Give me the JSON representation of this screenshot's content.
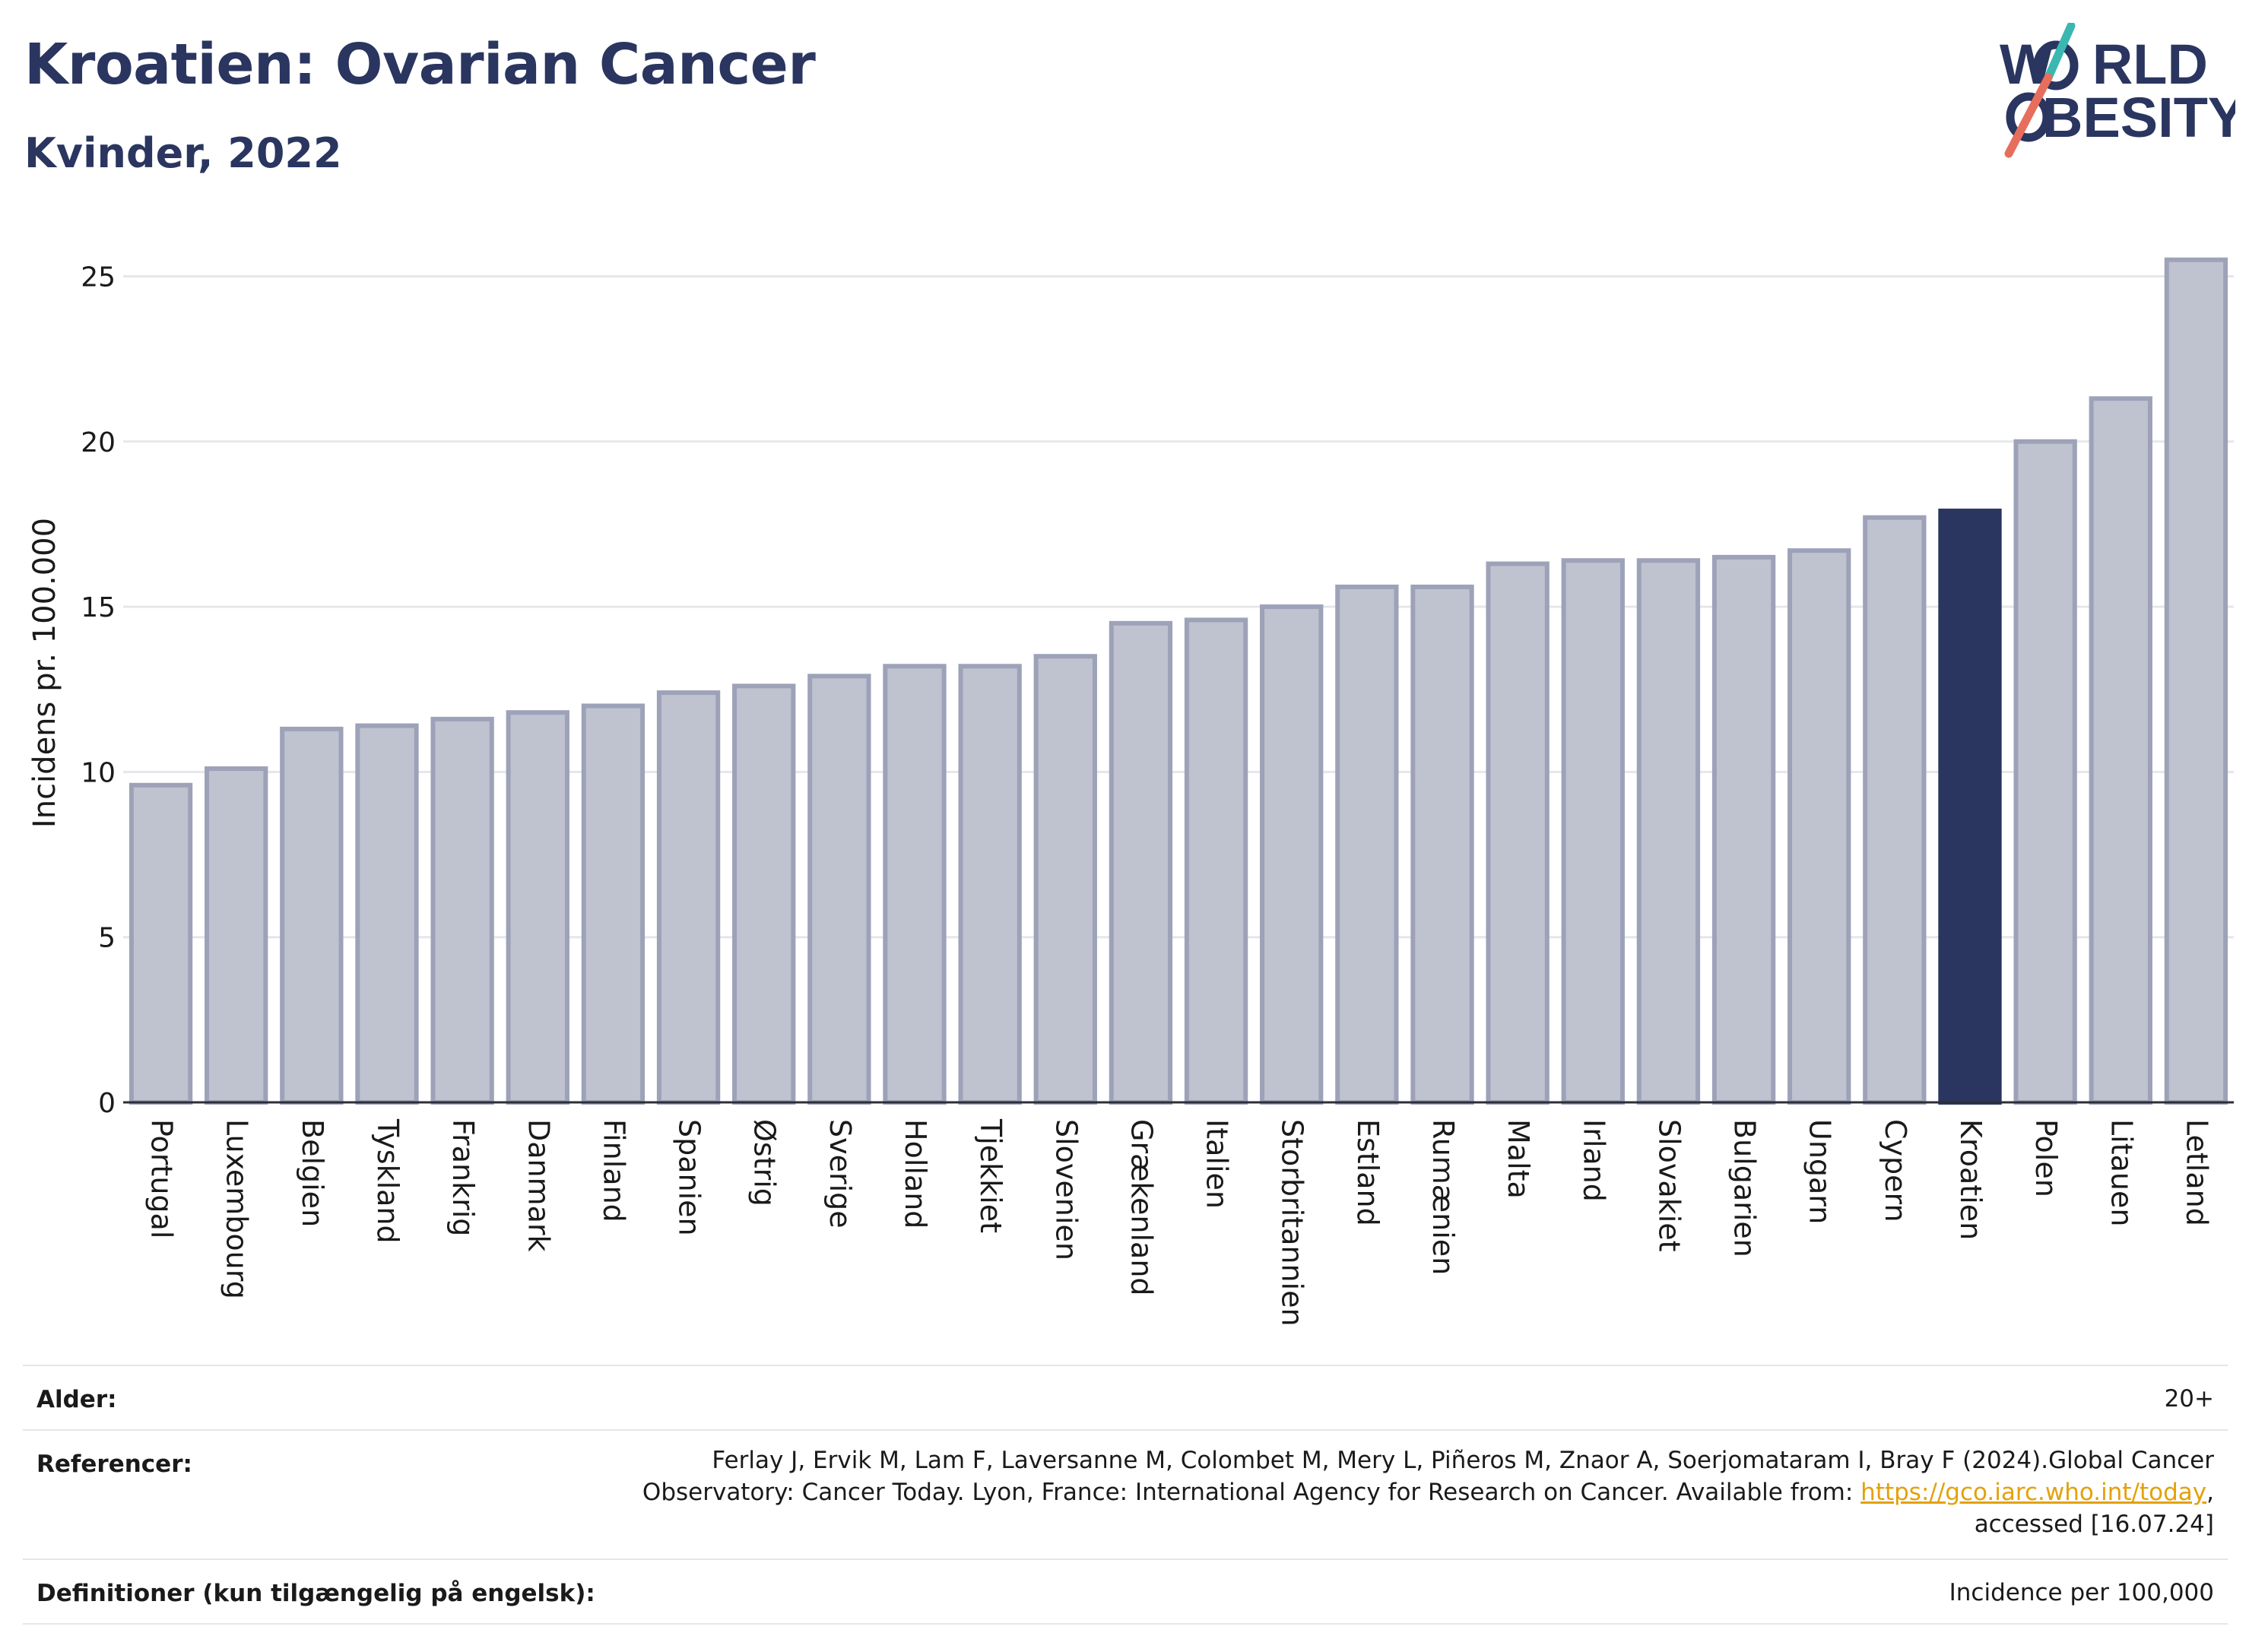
{
  "header": {
    "title": "Kroatien: Ovarian Cancer",
    "subtitle": "Kvinder, 2022"
  },
  "logo": {
    "line1_a": "W",
    "line1_b": "RLD",
    "line2_b": "BESITY",
    "colors": {
      "text": "#2a3560",
      "teal": "#3ab7b0",
      "coral": "#e76e5c"
    }
  },
  "chart_data": {
    "type": "bar",
    "ylabel": "Incidens pr. 100.000",
    "xlabel": "",
    "ylim": [
      0,
      26
    ],
    "yticks": [
      0,
      5,
      10,
      15,
      20,
      25
    ],
    "grid": true,
    "highlight": "Kroatien",
    "colors": {
      "bar": "#bfc2cf",
      "bar_edge": "#9da2b8",
      "highlight": "#2a3560"
    },
    "categories": [
      "Portugal",
      "Luxembourg",
      "Belgien",
      "Tyskland",
      "Frankrig",
      "Danmark",
      "Finland",
      "Spanien",
      "Østrig",
      "Sverige",
      "Holland",
      "Tjekkiet",
      "Slovenien",
      "Grækenland",
      "Italien",
      "Storbritannien",
      "Estland",
      "Rumænien",
      "Malta",
      "Irland",
      "Slovakiet",
      "Bulgarien",
      "Ungarn",
      "Cypern",
      "Kroatien",
      "Polen",
      "Litauen",
      "Letland"
    ],
    "values": [
      9.6,
      10.1,
      11.3,
      11.4,
      11.6,
      11.8,
      12.0,
      12.4,
      12.6,
      12.9,
      13.2,
      13.2,
      13.5,
      14.5,
      14.6,
      15.0,
      15.6,
      15.6,
      16.3,
      16.4,
      16.4,
      16.5,
      16.7,
      17.7,
      17.9,
      20.0,
      21.3,
      25.5
    ]
  },
  "meta": {
    "age_label": "Alder:",
    "age_value": "20+",
    "references_label": "Referencer:",
    "references_line1": "Ferlay J, Ervik M, Lam F, Laversanne M, Colombet M, Mery L, Piñeros M, Znaor A, Soerjomataram I, Bray F (2024).Global Cancer",
    "references_line2_pre": "Observatory: Cancer Today. Lyon, France: International Agency for Research on Cancer. Available from: ",
    "references_link": "https://gco.iarc.who.int/today",
    "references_line2_post": ",",
    "references_line3": "accessed [16.07.24]",
    "definitions_label": "Definitioner (kun tilgængelig på engelsk):",
    "definitions_value": "Incidence per 100,000"
  }
}
